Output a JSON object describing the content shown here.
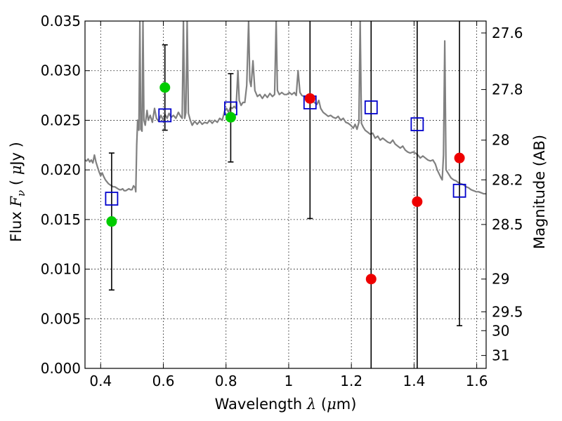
{
  "chart_data": {
    "type": "scatter",
    "title": "",
    "xlabel": "Wavelength",
    "xlabel_symbol": "λ",
    "xlabel_unit_pre": "(",
    "xlabel_unit_mu": "μ",
    "xlabel_unit_post": "m)",
    "ylabel": "Flux",
    "ylabel_symbol": "F",
    "ylabel_sub": "ν",
    "ylabel_unit_pre": "(",
    "ylabel_unit_mu": "μ",
    "ylabel_unit_post": "Jy )",
    "y2label": "Magnitude (AB)",
    "xlim": [
      0.35,
      1.63
    ],
    "ylim": [
      0.0,
      0.035
    ],
    "grid": true,
    "legend": "none",
    "xticks": [
      {
        "value": 0.4,
        "label": "0.4"
      },
      {
        "value": 0.6,
        "label": "0.6"
      },
      {
        "value": 0.8,
        "label": "0.8"
      },
      {
        "value": 1.0,
        "label": "1"
      },
      {
        "value": 1.2,
        "label": "1.2"
      },
      {
        "value": 1.4,
        "label": "1.4"
      },
      {
        "value": 1.6,
        "label": "1.6"
      }
    ],
    "yticks": [
      {
        "value": 0.0,
        "label": "0.000"
      },
      {
        "value": 0.005,
        "label": "0.005"
      },
      {
        "value": 0.01,
        "label": "0.010"
      },
      {
        "value": 0.015,
        "label": "0.015"
      },
      {
        "value": 0.02,
        "label": "0.020"
      },
      {
        "value": 0.025,
        "label": "0.025"
      },
      {
        "value": 0.03,
        "label": "0.030"
      },
      {
        "value": 0.035,
        "label": "0.035"
      }
    ],
    "magnitude_ticks": [
      {
        "flux": 0.0338,
        "label": "27.6"
      },
      {
        "flux": 0.0281,
        "label": "27.8"
      },
      {
        "flux": 0.023,
        "label": "28"
      },
      {
        "flux": 0.019,
        "label": "28.2"
      },
      {
        "flux": 0.0145,
        "label": "28.5"
      },
      {
        "flux": 0.009,
        "label": "29"
      },
      {
        "flux": 0.0057,
        "label": "29.5"
      },
      {
        "flux": 0.0038,
        "label": "30"
      },
      {
        "flux": 0.0013,
        "label": "31"
      }
    ],
    "series": [
      {
        "kind": "model-spectrum",
        "color": "#808080",
        "points": [
          [
            0.35,
            0.021
          ],
          [
            0.355,
            0.0209
          ],
          [
            0.36,
            0.0211
          ],
          [
            0.365,
            0.0208
          ],
          [
            0.37,
            0.021
          ],
          [
            0.375,
            0.0207
          ],
          [
            0.38,
            0.0215
          ],
          [
            0.385,
            0.0208
          ],
          [
            0.39,
            0.0203
          ],
          [
            0.395,
            0.0198
          ],
          [
            0.4,
            0.0194
          ],
          [
            0.405,
            0.0197
          ],
          [
            0.41,
            0.0193
          ],
          [
            0.415,
            0.019
          ],
          [
            0.42,
            0.0188
          ],
          [
            0.425,
            0.0186
          ],
          [
            0.43,
            0.0185
          ],
          [
            0.435,
            0.0184
          ],
          [
            0.44,
            0.0183
          ],
          [
            0.445,
            0.0183
          ],
          [
            0.45,
            0.0182
          ],
          [
            0.455,
            0.0181
          ],
          [
            0.46,
            0.018
          ],
          [
            0.465,
            0.018
          ],
          [
            0.47,
            0.0181
          ],
          [
            0.475,
            0.0179
          ],
          [
            0.48,
            0.0179
          ],
          [
            0.485,
            0.018
          ],
          [
            0.49,
            0.0181
          ],
          [
            0.495,
            0.018
          ],
          [
            0.5,
            0.018
          ],
          [
            0.505,
            0.0184
          ],
          [
            0.51,
            0.0182
          ],
          [
            0.512,
            0.0178
          ],
          [
            0.515,
            0.0225
          ],
          [
            0.518,
            0.025
          ],
          [
            0.522,
            0.024
          ],
          [
            0.525,
            0.035
          ],
          [
            0.528,
            0.0241
          ],
          [
            0.532,
            0.0239
          ],
          [
            0.535,
            0.035
          ],
          [
            0.538,
            0.025
          ],
          [
            0.542,
            0.0245
          ],
          [
            0.548,
            0.026
          ],
          [
            0.552,
            0.025
          ],
          [
            0.558,
            0.0255
          ],
          [
            0.565,
            0.0248
          ],
          [
            0.572,
            0.0262
          ],
          [
            0.578,
            0.0252
          ],
          [
            0.585,
            0.0249
          ],
          [
            0.592,
            0.0255
          ],
          [
            0.6,
            0.025
          ],
          [
            0.605,
            0.0256
          ],
          [
            0.612,
            0.0252
          ],
          [
            0.618,
            0.0257
          ],
          [
            0.625,
            0.0253
          ],
          [
            0.632,
            0.0255
          ],
          [
            0.64,
            0.0252
          ],
          [
            0.648,
            0.0258
          ],
          [
            0.655,
            0.0254
          ],
          [
            0.66,
            0.0252
          ],
          [
            0.664,
            0.035
          ],
          [
            0.668,
            0.0252
          ],
          [
            0.672,
            0.0258
          ],
          [
            0.676,
            0.035
          ],
          [
            0.68,
            0.0257
          ],
          [
            0.686,
            0.025
          ],
          [
            0.692,
            0.0245
          ],
          [
            0.7,
            0.0249
          ],
          [
            0.708,
            0.0246
          ],
          [
            0.716,
            0.0249
          ],
          [
            0.724,
            0.0246
          ],
          [
            0.732,
            0.0248
          ],
          [
            0.74,
            0.0247
          ],
          [
            0.748,
            0.025
          ],
          [
            0.756,
            0.0247
          ],
          [
            0.764,
            0.025
          ],
          [
            0.772,
            0.0248
          ],
          [
            0.78,
            0.0252
          ],
          [
            0.788,
            0.025
          ],
          [
            0.796,
            0.026
          ],
          [
            0.802,
            0.0262
          ],
          [
            0.808,
            0.0258
          ],
          [
            0.814,
            0.0263
          ],
          [
            0.82,
            0.0262
          ],
          [
            0.826,
            0.0264
          ],
          [
            0.832,
            0.0262
          ],
          [
            0.838,
            0.03
          ],
          [
            0.842,
            0.027
          ],
          [
            0.848,
            0.0265
          ],
          [
            0.854,
            0.0268
          ],
          [
            0.86,
            0.0268
          ],
          [
            0.866,
            0.0285
          ],
          [
            0.872,
            0.035
          ],
          [
            0.876,
            0.029
          ],
          [
            0.88,
            0.0284
          ],
          [
            0.886,
            0.031
          ],
          [
            0.892,
            0.028
          ],
          [
            0.9,
            0.0274
          ],
          [
            0.908,
            0.0276
          ],
          [
            0.916,
            0.0272
          ],
          [
            0.924,
            0.0276
          ],
          [
            0.932,
            0.0273
          ],
          [
            0.94,
            0.0277
          ],
          [
            0.948,
            0.0274
          ],
          [
            0.955,
            0.0276
          ],
          [
            0.96,
            0.035
          ],
          [
            0.964,
            0.028
          ],
          [
            0.97,
            0.0276
          ],
          [
            0.978,
            0.0278
          ],
          [
            0.986,
            0.0276
          ],
          [
            0.994,
            0.0276
          ],
          [
            1.002,
            0.0278
          ],
          [
            1.01,
            0.0276
          ],
          [
            1.018,
            0.0278
          ],
          [
            1.024,
            0.0275
          ],
          [
            1.03,
            0.03
          ],
          [
            1.036,
            0.0278
          ],
          [
            1.042,
            0.0275
          ],
          [
            1.05,
            0.0274
          ],
          [
            1.058,
            0.0272
          ],
          [
            1.066,
            0.0271
          ],
          [
            1.074,
            0.027
          ],
          [
            1.082,
            0.0268
          ],
          [
            1.09,
            0.0266
          ],
          [
            1.096,
            0.027
          ],
          [
            1.102,
            0.0262
          ],
          [
            1.11,
            0.0258
          ],
          [
            1.118,
            0.0256
          ],
          [
            1.126,
            0.0254
          ],
          [
            1.134,
            0.0255
          ],
          [
            1.142,
            0.0253
          ],
          [
            1.15,
            0.0252
          ],
          [
            1.158,
            0.0254
          ],
          [
            1.166,
            0.025
          ],
          [
            1.174,
            0.0252
          ],
          [
            1.182,
            0.0248
          ],
          [
            1.19,
            0.0247
          ],
          [
            1.198,
            0.0245
          ],
          [
            1.206,
            0.0242
          ],
          [
            1.212,
            0.0246
          ],
          [
            1.218,
            0.0241
          ],
          [
            1.224,
            0.0248
          ],
          [
            1.228,
            0.035
          ],
          [
            1.232,
            0.0247
          ],
          [
            1.238,
            0.0243
          ],
          [
            1.244,
            0.024
          ],
          [
            1.252,
            0.0238
          ],
          [
            1.26,
            0.0236
          ],
          [
            1.268,
            0.0237
          ],
          [
            1.276,
            0.0232
          ],
          [
            1.284,
            0.0234
          ],
          [
            1.292,
            0.023
          ],
          [
            1.3,
            0.0232
          ],
          [
            1.308,
            0.023
          ],
          [
            1.316,
            0.0228
          ],
          [
            1.324,
            0.0227
          ],
          [
            1.332,
            0.023
          ],
          [
            1.34,
            0.0226
          ],
          [
            1.348,
            0.0224
          ],
          [
            1.356,
            0.0222
          ],
          [
            1.364,
            0.0224
          ],
          [
            1.372,
            0.022
          ],
          [
            1.38,
            0.0218
          ],
          [
            1.388,
            0.0217
          ],
          [
            1.396,
            0.0218
          ],
          [
            1.404,
            0.0217
          ],
          [
            1.412,
            0.0215
          ],
          [
            1.42,
            0.0212
          ],
          [
            1.428,
            0.0214
          ],
          [
            1.436,
            0.0212
          ],
          [
            1.444,
            0.021
          ],
          [
            1.452,
            0.0209
          ],
          [
            1.46,
            0.021
          ],
          [
            1.468,
            0.0206
          ],
          [
            1.474,
            0.02
          ],
          [
            1.48,
            0.0196
          ],
          [
            1.486,
            0.0192
          ],
          [
            1.49,
            0.019
          ],
          [
            1.494,
            0.0215
          ],
          [
            1.498,
            0.033
          ],
          [
            1.502,
            0.02
          ],
          [
            1.51,
            0.0196
          ],
          [
            1.518,
            0.0192
          ],
          [
            1.526,
            0.019
          ],
          [
            1.534,
            0.0189
          ],
          [
            1.542,
            0.0187
          ],
          [
            1.55,
            0.0186
          ],
          [
            1.558,
            0.0185
          ],
          [
            1.566,
            0.0183
          ],
          [
            1.574,
            0.0182
          ],
          [
            1.582,
            0.018
          ],
          [
            1.59,
            0.0179
          ],
          [
            1.598,
            0.0178
          ],
          [
            1.606,
            0.0178
          ],
          [
            1.614,
            0.0177
          ],
          [
            1.622,
            0.0176
          ],
          [
            1.63,
            0.0176
          ]
        ]
      },
      {
        "kind": "model-bandpass-flux",
        "marker": "open-square",
        "color": "#0000cc",
        "points": [
          [
            0.435,
            0.0171
          ],
          [
            0.605,
            0.0255
          ],
          [
            0.815,
            0.0262
          ],
          [
            1.068,
            0.0268
          ],
          [
            1.263,
            0.0263
          ],
          [
            1.41,
            0.0246
          ],
          [
            1.545,
            0.0179
          ]
        ]
      },
      {
        "kind": "observed-detection",
        "marker": "filled-circle",
        "color": "#00cc00",
        "points": [
          {
            "x": 0.435,
            "y": 0.0148,
            "ylow": 0.0079,
            "yhigh": 0.0217
          },
          {
            "x": 0.605,
            "y": 0.0283,
            "ylow": 0.024,
            "yhigh": 0.0326
          },
          {
            "x": 0.815,
            "y": 0.0253,
            "ylow": 0.0208,
            "yhigh": 0.0297
          }
        ]
      },
      {
        "kind": "observed-nondetection",
        "marker": "filled-circle",
        "color": "#ee0000",
        "points": [
          {
            "x": 1.068,
            "y": 0.0272,
            "ylow": 0.0151,
            "yhigh": 0.035
          },
          {
            "x": 1.263,
            "y": 0.009,
            "ylow": 0.0,
            "yhigh": 0.035
          },
          {
            "x": 1.41,
            "y": 0.0168,
            "ylow": 0.0,
            "yhigh": 0.035
          },
          {
            "x": 1.545,
            "y": 0.0212,
            "ylow": 0.0043,
            "yhigh": 0.035
          }
        ]
      }
    ]
  }
}
